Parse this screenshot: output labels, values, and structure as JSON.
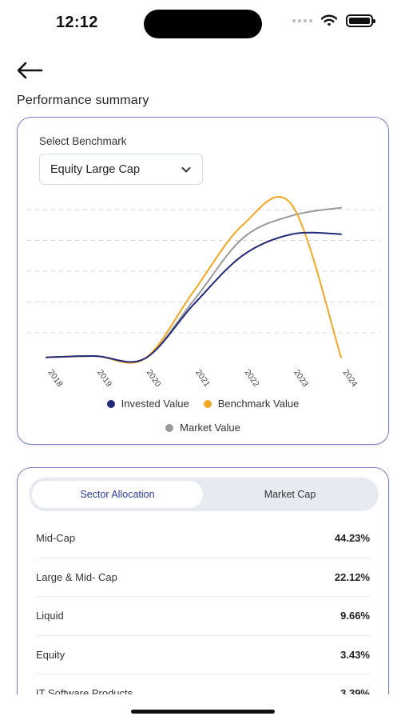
{
  "status_bar": {
    "time": "12:12",
    "icons": [
      "cellular-signal-icon",
      "wifi-icon",
      "battery-icon"
    ]
  },
  "header": {
    "back_icon": "arrow-left-icon",
    "title": "Performance summary"
  },
  "performance": {
    "benchmark_label": "Select Benchmark",
    "benchmark_selected": "Equity Large Cap",
    "dropdown_icon": "chevron-down-icon"
  },
  "chart_data": {
    "type": "line",
    "title": "",
    "xlabel": "",
    "ylabel": "",
    "x": [
      "2018",
      "2019",
      "2020",
      "2021",
      "2022",
      "2023",
      "2024"
    ],
    "grid": "horizontal-dashed",
    "y_axis_labels_shown": false,
    "legend_position": "bottom-center",
    "series": [
      {
        "name": "Invested Value",
        "color": "#22297a",
        "values": [
          5,
          6,
          4,
          45,
          82,
          98,
          98
        ]
      },
      {
        "name": "Benchmark Value",
        "color": "#f5a623",
        "values": [
          5,
          6,
          4,
          55,
          105,
          120,
          5
        ]
      },
      {
        "name": "Market Value",
        "color": "#9a9a9a",
        "values": [
          5,
          6,
          4,
          48,
          95,
          112,
          118
        ]
      }
    ]
  },
  "allocation": {
    "tabs": [
      {
        "label": "Sector Allocation",
        "active": true
      },
      {
        "label": "Market Cap",
        "active": false
      }
    ],
    "items": [
      {
        "name": "Mid-Cap",
        "percent": "44.23%"
      },
      {
        "name": "Large & Mid- Cap",
        "percent": "22.12%"
      },
      {
        "name": "Liquid",
        "percent": "9.66%"
      },
      {
        "name": "Equity",
        "percent": "3.43%"
      },
      {
        "name": "IT Software Products",
        "percent": "3.39%"
      }
    ]
  },
  "colors": {
    "accent": "#2a3a9a",
    "card_border": "#7a7fc6",
    "toggle_bg": "#e7eaf0"
  }
}
